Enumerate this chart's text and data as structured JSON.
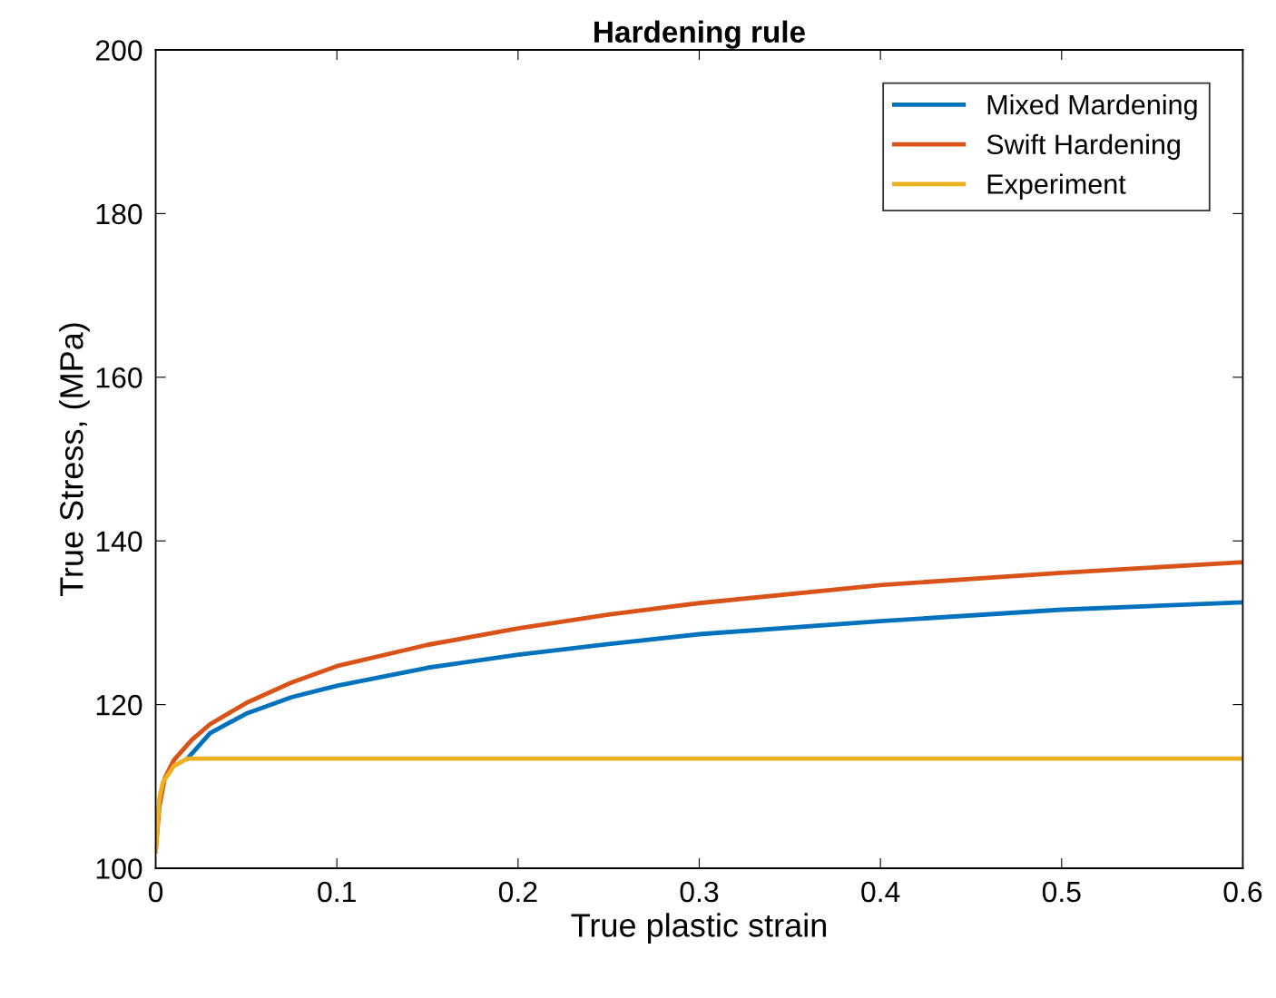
{
  "chart_data": {
    "type": "line",
    "title": "Hardening rule",
    "xlabel": "True plastic strain",
    "ylabel": "True Stress, (MPa)",
    "xlim": [
      0,
      0.6
    ],
    "ylim": [
      100,
      200
    ],
    "xticks": [
      0,
      0.1,
      0.2,
      0.3,
      0.4,
      0.5,
      0.6
    ],
    "yticks": [
      100,
      120,
      140,
      160,
      180,
      200
    ],
    "grid": false,
    "legend": "top right",
    "series": [
      {
        "name": "Mixed Mardening",
        "color": "#0072bd",
        "x": [
          0.0175,
          0.022,
          0.03,
          0.05,
          0.075,
          0.1,
          0.15,
          0.2,
          0.25,
          0.3,
          0.4,
          0.5,
          0.6
        ],
        "values": [
          113.4,
          114.5,
          116.5,
          118.9,
          120.9,
          122.3,
          124.5,
          126.1,
          127.4,
          128.6,
          130.2,
          131.6,
          132.5
        ]
      },
      {
        "name": "Swift Hardening",
        "color": "#d95319",
        "x": [
          0,
          0.002,
          0.005,
          0.01,
          0.02,
          0.03,
          0.05,
          0.075,
          0.1,
          0.15,
          0.2,
          0.25,
          0.3,
          0.4,
          0.5,
          0.6
        ],
        "values": [
          102.1,
          107.5,
          111,
          113.2,
          115.7,
          117.6,
          120.2,
          122.7,
          124.7,
          127.3,
          129.3,
          131,
          132.4,
          134.6,
          136.1,
          137.4
        ]
      },
      {
        "name": "Experiment",
        "color": "#edb120",
        "x": [
          0,
          0.002,
          0.004,
          0.01,
          0.0175,
          0.6
        ],
        "values": [
          102.1,
          108.5,
          110.5,
          112.5,
          113.4,
          113.4
        ]
      }
    ]
  }
}
